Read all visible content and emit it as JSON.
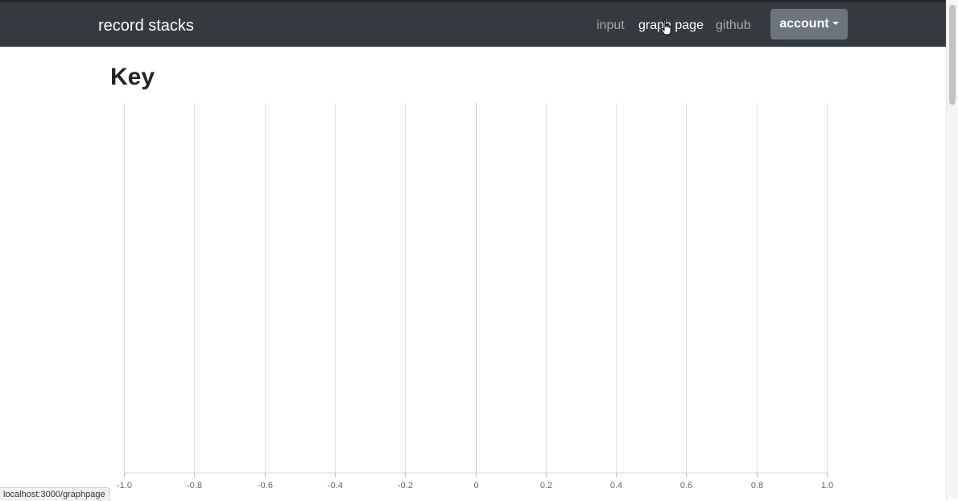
{
  "navbar": {
    "brand": "record stacks",
    "links": [
      {
        "label": "input"
      },
      {
        "label": "graph page"
      },
      {
        "label": "github"
      }
    ],
    "account_label": "account"
  },
  "page": {
    "title": "Key"
  },
  "chart_data": {
    "type": "scatter",
    "title": "",
    "xlabel": "",
    "ylabel": "",
    "xlim": [
      -1.0,
      1.0
    ],
    "x_ticks": [
      "-1.0",
      "-0.8",
      "-0.6",
      "-0.4",
      "-0.2",
      "0",
      "0.2",
      "0.4",
      "0.6",
      "0.8",
      "1.0"
    ],
    "series": [],
    "grid": true
  },
  "status_bar": {
    "url": "localhost:3000/graphpage"
  }
}
